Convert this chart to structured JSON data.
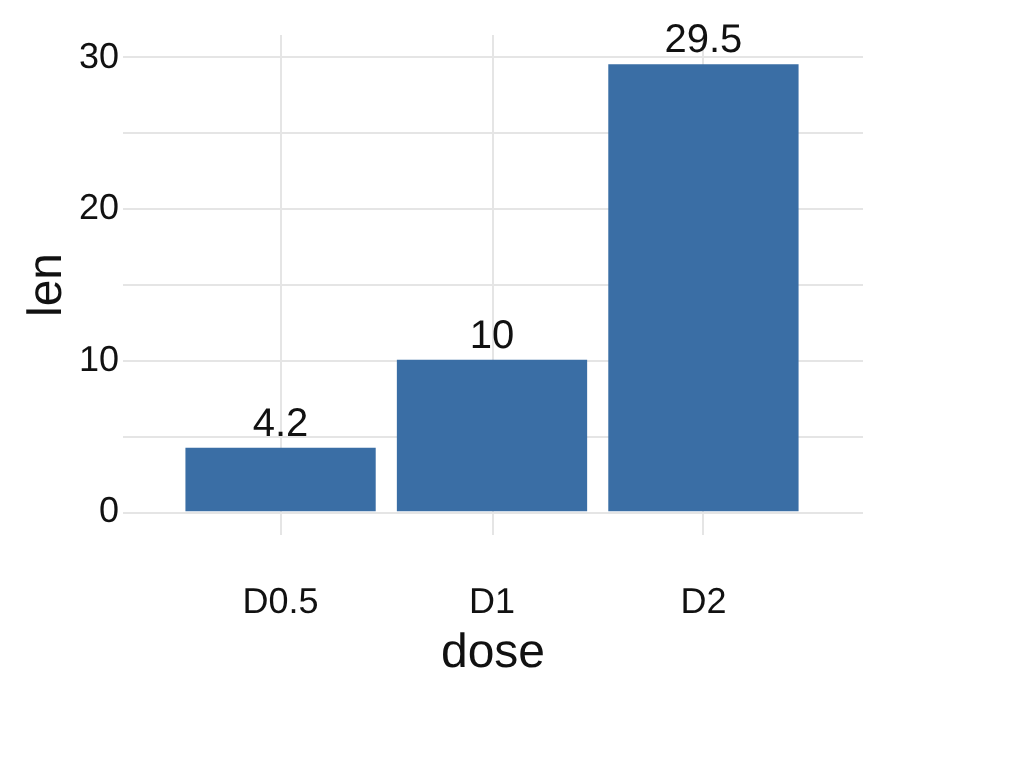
{
  "chart_data": {
    "type": "bar",
    "xlabel": "dose",
    "ylabel": "len",
    "categories": [
      "D0.5",
      "D1",
      "D2"
    ],
    "values": [
      4.2,
      10,
      29.5
    ],
    "color": "#3a6ea5",
    "ylim": [
      -1.5,
      31.5
    ],
    "yticks": [
      0,
      {
        "value": 5,
        "label": null
      },
      10,
      {
        "value": 15,
        "label": null
      },
      20,
      {
        "value": 25,
        "label": null
      },
      30
    ],
    "grid": true,
    "data_labels": true
  }
}
